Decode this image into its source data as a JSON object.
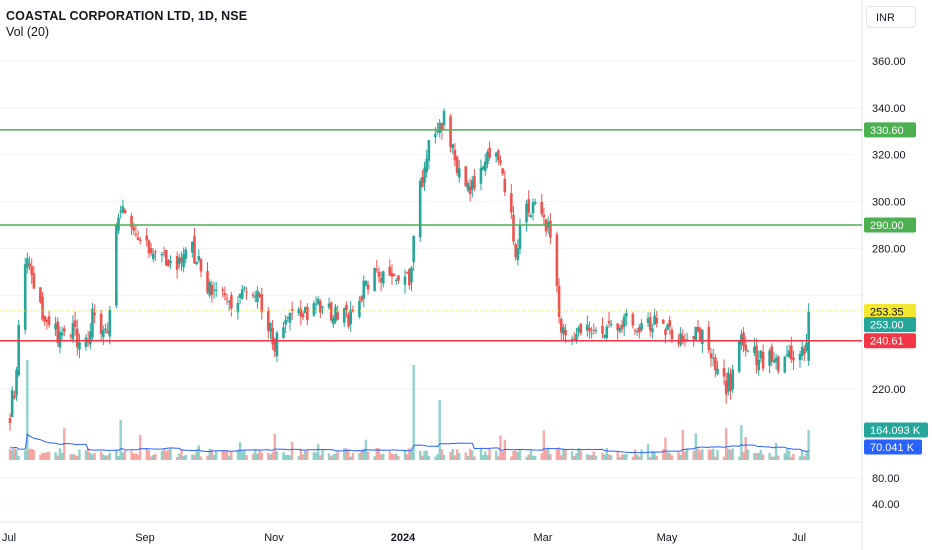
{
  "header": {
    "title": "COASTAL CORPORATION LTD, 1D, NSE",
    "volume_indicator": "Vol (20)",
    "currency": "INR"
  },
  "colors": {
    "up": "#26a69a",
    "down": "#ef5350",
    "resistance_line": "#4caf50",
    "support_line": "#f23645",
    "last_price_line": "#f5e72f",
    "volume_ma": "#2962ff"
  },
  "chart_data": {
    "type": "candlestick",
    "symbol": "COASTAL CORPORATION LTD",
    "interval": "1D",
    "exchange": "NSE",
    "price_axis": {
      "ticks": [
        "360.00",
        "340.00",
        "320.00",
        "300.00",
        "280.00",
        "220.00"
      ],
      "range": [
        202,
        366
      ]
    },
    "volume_axis": {
      "ticks": [
        "80.00",
        "40.00"
      ]
    },
    "time_axis": {
      "labels": [
        {
          "text": "Jul",
          "bold": false
        },
        {
          "text": "Sep",
          "bold": false
        },
        {
          "text": "Nov",
          "bold": false
        },
        {
          "text": "2024",
          "bold": true
        },
        {
          "text": "Mar",
          "bold": false
        },
        {
          "text": "May",
          "bold": false
        },
        {
          "text": "Jul",
          "bold": false
        }
      ]
    },
    "horizontal_lines": [
      {
        "price": 330.6,
        "label": "330.60",
        "role": "resistance"
      },
      {
        "price": 290.0,
        "label": "290.00",
        "role": "resistance"
      },
      {
        "price": 240.61,
        "label": "240.61",
        "role": "support"
      },
      {
        "price": 253.35,
        "label": "253.35",
        "role": "dotted-level"
      }
    ],
    "last_price": 253.0,
    "last_price_label": "253.00",
    "volume_last_label": "164.093 K",
    "volume_ma_label": "70.041 K",
    "close_points": [
      [
        "2023-07-03",
        210
      ],
      [
        "2023-07-06",
        225
      ],
      [
        "2023-07-09",
        280
      ],
      [
        "2023-07-12",
        268
      ],
      [
        "2023-07-15",
        258
      ],
      [
        "2023-07-18",
        252
      ],
      [
        "2023-07-21",
        246
      ],
      [
        "2023-07-24",
        244
      ],
      [
        "2023-07-27",
        240
      ],
      [
        "2023-08-01",
        244
      ],
      [
        "2023-08-06",
        238
      ],
      [
        "2023-08-10",
        250
      ],
      [
        "2023-08-13",
        244
      ],
      [
        "2023-08-17",
        243
      ],
      [
        "2023-08-21",
        287
      ],
      [
        "2023-08-24",
        300
      ],
      [
        "2023-08-28",
        285
      ],
      [
        "2023-09-03",
        280
      ],
      [
        "2023-09-10",
        280
      ],
      [
        "2023-09-17",
        270
      ],
      [
        "2023-09-24",
        283
      ],
      [
        "2023-10-01",
        265
      ],
      [
        "2023-10-08",
        262
      ],
      [
        "2023-10-15",
        257
      ],
      [
        "2023-10-22",
        262
      ],
      [
        "2023-10-29",
        252
      ],
      [
        "2023-11-02",
        240
      ],
      [
        "2023-11-08",
        248
      ],
      [
        "2023-11-15",
        252
      ],
      [
        "2023-11-22",
        254
      ],
      [
        "2023-11-29",
        252
      ],
      [
        "2023-12-06",
        250
      ],
      [
        "2023-12-13",
        262
      ],
      [
        "2023-12-20",
        270
      ],
      [
        "2023-12-27",
        268
      ],
      [
        "2024-01-03",
        268
      ],
      [
        "2024-01-07",
        300
      ],
      [
        "2024-01-11",
        320
      ],
      [
        "2024-01-15",
        330
      ],
      [
        "2024-01-19",
        335
      ],
      [
        "2024-01-23",
        320
      ],
      [
        "2024-01-28",
        310
      ],
      [
        "2024-02-03",
        305
      ],
      [
        "2024-02-07",
        315
      ],
      [
        "2024-02-11",
        322
      ],
      [
        "2024-02-17",
        305
      ],
      [
        "2024-02-21",
        280
      ],
      [
        "2024-02-25",
        296
      ],
      [
        "2024-03-01",
        298
      ],
      [
        "2024-03-06",
        290
      ],
      [
        "2024-03-10",
        280
      ],
      [
        "2024-03-13",
        242
      ],
      [
        "2024-03-20",
        244
      ],
      [
        "2024-04-01",
        246
      ],
      [
        "2024-04-10",
        250
      ],
      [
        "2024-04-20",
        248
      ],
      [
        "2024-04-27",
        250
      ],
      [
        "2024-05-01",
        246
      ],
      [
        "2024-05-05",
        240
      ],
      [
        "2024-05-11",
        243
      ],
      [
        "2024-05-17",
        242
      ],
      [
        "2024-05-23",
        228
      ],
      [
        "2024-05-28",
        222
      ],
      [
        "2024-06-01",
        225
      ],
      [
        "2024-06-04",
        242
      ],
      [
        "2024-06-09",
        235
      ],
      [
        "2024-06-15",
        232
      ],
      [
        "2024-06-23",
        232
      ],
      [
        "2024-06-29",
        232
      ],
      [
        "2024-07-03",
        234
      ],
      [
        "2024-07-06",
        253
      ]
    ]
  }
}
